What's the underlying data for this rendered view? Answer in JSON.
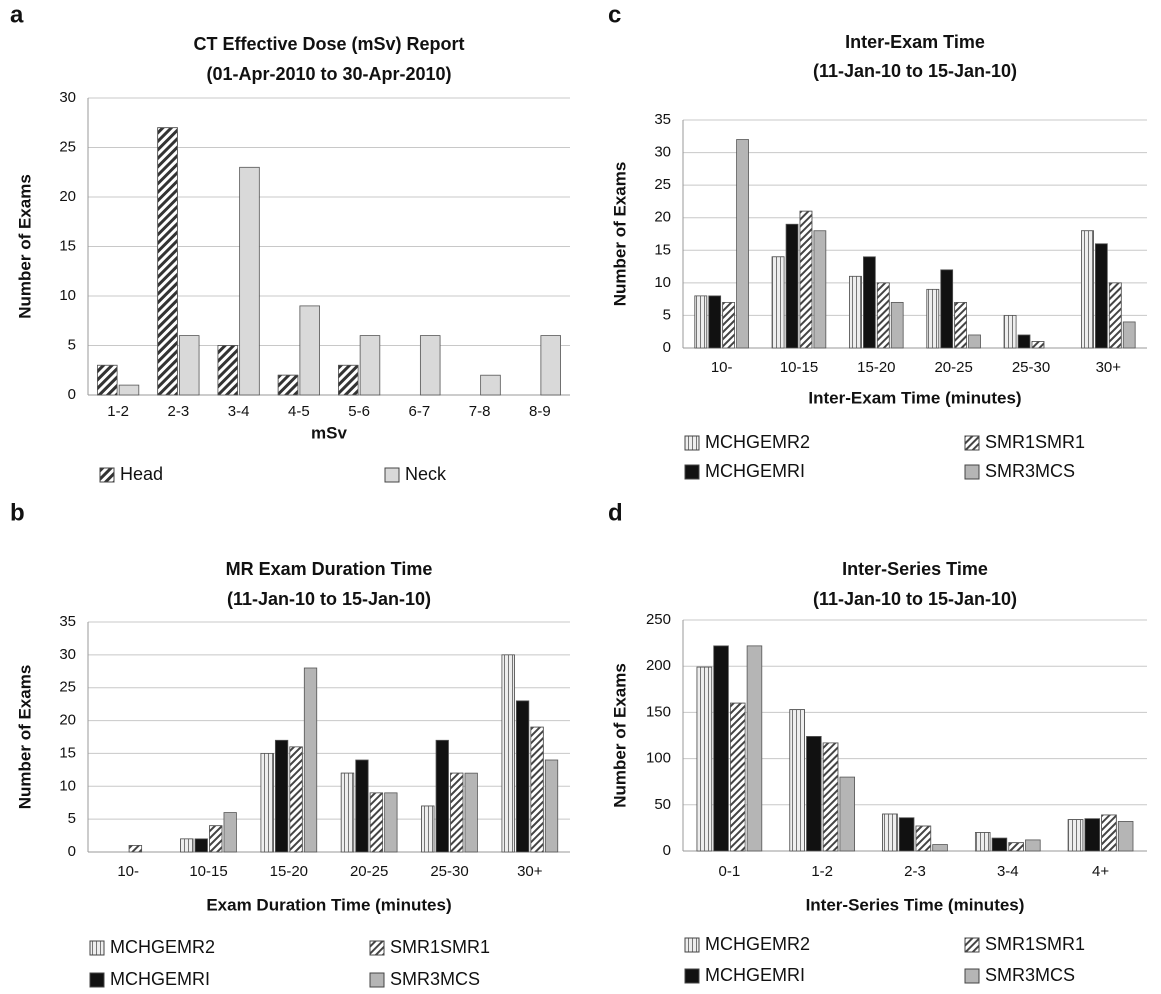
{
  "chart_data": [
    {
      "type": "bar",
      "panel": "a",
      "title": "CT Effective Dose (mSv) Report",
      "subtitle": "(01-Apr-2010 to 30-Apr-2010)",
      "x_label": "mSv",
      "y_label": "Number of Exams",
      "categories": [
        "1-2",
        "2-3",
        "3-4",
        "4-5",
        "5-6",
        "6-7",
        "7-8",
        "8-9"
      ],
      "series": [
        {
          "name": "Head",
          "color": "#ffffff",
          "pattern": "diagonal-dense",
          "values": [
            3,
            27,
            5,
            2,
            3,
            0,
            0,
            0
          ]
        },
        {
          "name": "Neck",
          "color": "#d9d9d9",
          "values": [
            1,
            6,
            23,
            9,
            6,
            6,
            2,
            6
          ]
        }
      ],
      "ylim": [
        0,
        30
      ],
      "yticks": [
        0,
        5,
        10,
        15,
        20,
        25,
        30
      ],
      "grid": true
    },
    {
      "type": "bar",
      "panel": "b",
      "title": "MR Exam  Duration Time",
      "subtitle": "(11-Jan-10 to 15-Jan-10)",
      "x_label": "Exam  Duration Time (minutes)",
      "y_label": "Number of Exams",
      "categories": [
        "10-",
        "10-15",
        "15-20",
        "20-25",
        "25-30",
        "30+"
      ],
      "series": [
        {
          "name": "MCHGEMR2",
          "color": "#e8e8e8",
          "pattern": "vertical",
          "values": [
            0,
            2,
            15,
            12,
            7,
            30
          ]
        },
        {
          "name": "MCHGEMRI",
          "color": "#111111",
          "values": [
            0,
            2,
            17,
            14,
            17,
            23
          ]
        },
        {
          "name": "SMR1SMR1",
          "color": "#ffffff",
          "pattern": "diagonal",
          "values": [
            1,
            4,
            16,
            9,
            12,
            19
          ]
        },
        {
          "name": "SMR3MCS",
          "color": "#b5b5b5",
          "values": [
            0,
            6,
            28,
            9,
            12,
            14
          ]
        }
      ],
      "ylim": [
        0,
        35
      ],
      "yticks": [
        0,
        5,
        10,
        15,
        20,
        25,
        30,
        35
      ],
      "grid": true
    },
    {
      "type": "bar",
      "panel": "c",
      "title": "Inter-Exam Time",
      "subtitle": "(11-Jan-10 to 15-Jan-10)",
      "x_label": "Inter-Exam Time (minutes)",
      "y_label": "Number of Exams",
      "categories": [
        "10-",
        "10-15",
        "15-20",
        "20-25",
        "25-30",
        "30+"
      ],
      "series": [
        {
          "name": "MCHGEMR2",
          "color": "#e8e8e8",
          "pattern": "vertical",
          "values": [
            8,
            14,
            11,
            9,
            5,
            18
          ]
        },
        {
          "name": "MCHGEMRI",
          "color": "#111111",
          "values": [
            8,
            19,
            14,
            12,
            2,
            16
          ]
        },
        {
          "name": "SMR1SMR1",
          "color": "#ffffff",
          "pattern": "diagonal",
          "values": [
            7,
            21,
            10,
            7,
            1,
            10
          ]
        },
        {
          "name": "SMR3MCS",
          "color": "#b5b5b5",
          "values": [
            32,
            18,
            7,
            2,
            0,
            4
          ]
        }
      ],
      "ylim": [
        0,
        35
      ],
      "yticks": [
        0,
        5,
        10,
        15,
        20,
        25,
        30,
        35
      ],
      "grid": true
    },
    {
      "type": "bar",
      "panel": "d",
      "title": "Inter-Series Time",
      "subtitle": "(11-Jan-10 to 15-Jan-10)",
      "x_label": "Inter-Series Time (minutes)",
      "y_label": "Number of Exams",
      "categories": [
        "0-1",
        "1-2",
        "2-3",
        "3-4",
        "4+"
      ],
      "series": [
        {
          "name": "MCHGEMR2",
          "color": "#e8e8e8",
          "pattern": "vertical",
          "values": [
            199,
            153,
            40,
            20,
            34
          ]
        },
        {
          "name": "MCHGEMRI",
          "color": "#111111",
          "values": [
            222,
            124,
            36,
            14,
            35
          ]
        },
        {
          "name": "SMR1SMR1",
          "color": "#ffffff",
          "pattern": "diagonal",
          "values": [
            160,
            117,
            27,
            9,
            39
          ]
        },
        {
          "name": "SMR3MCS",
          "color": "#b5b5b5",
          "values": [
            222,
            80,
            7,
            12,
            32
          ]
        }
      ],
      "ylim": [
        0,
        250
      ],
      "yticks": [
        0,
        50,
        100,
        150,
        200,
        250
      ],
      "grid": true
    }
  ]
}
